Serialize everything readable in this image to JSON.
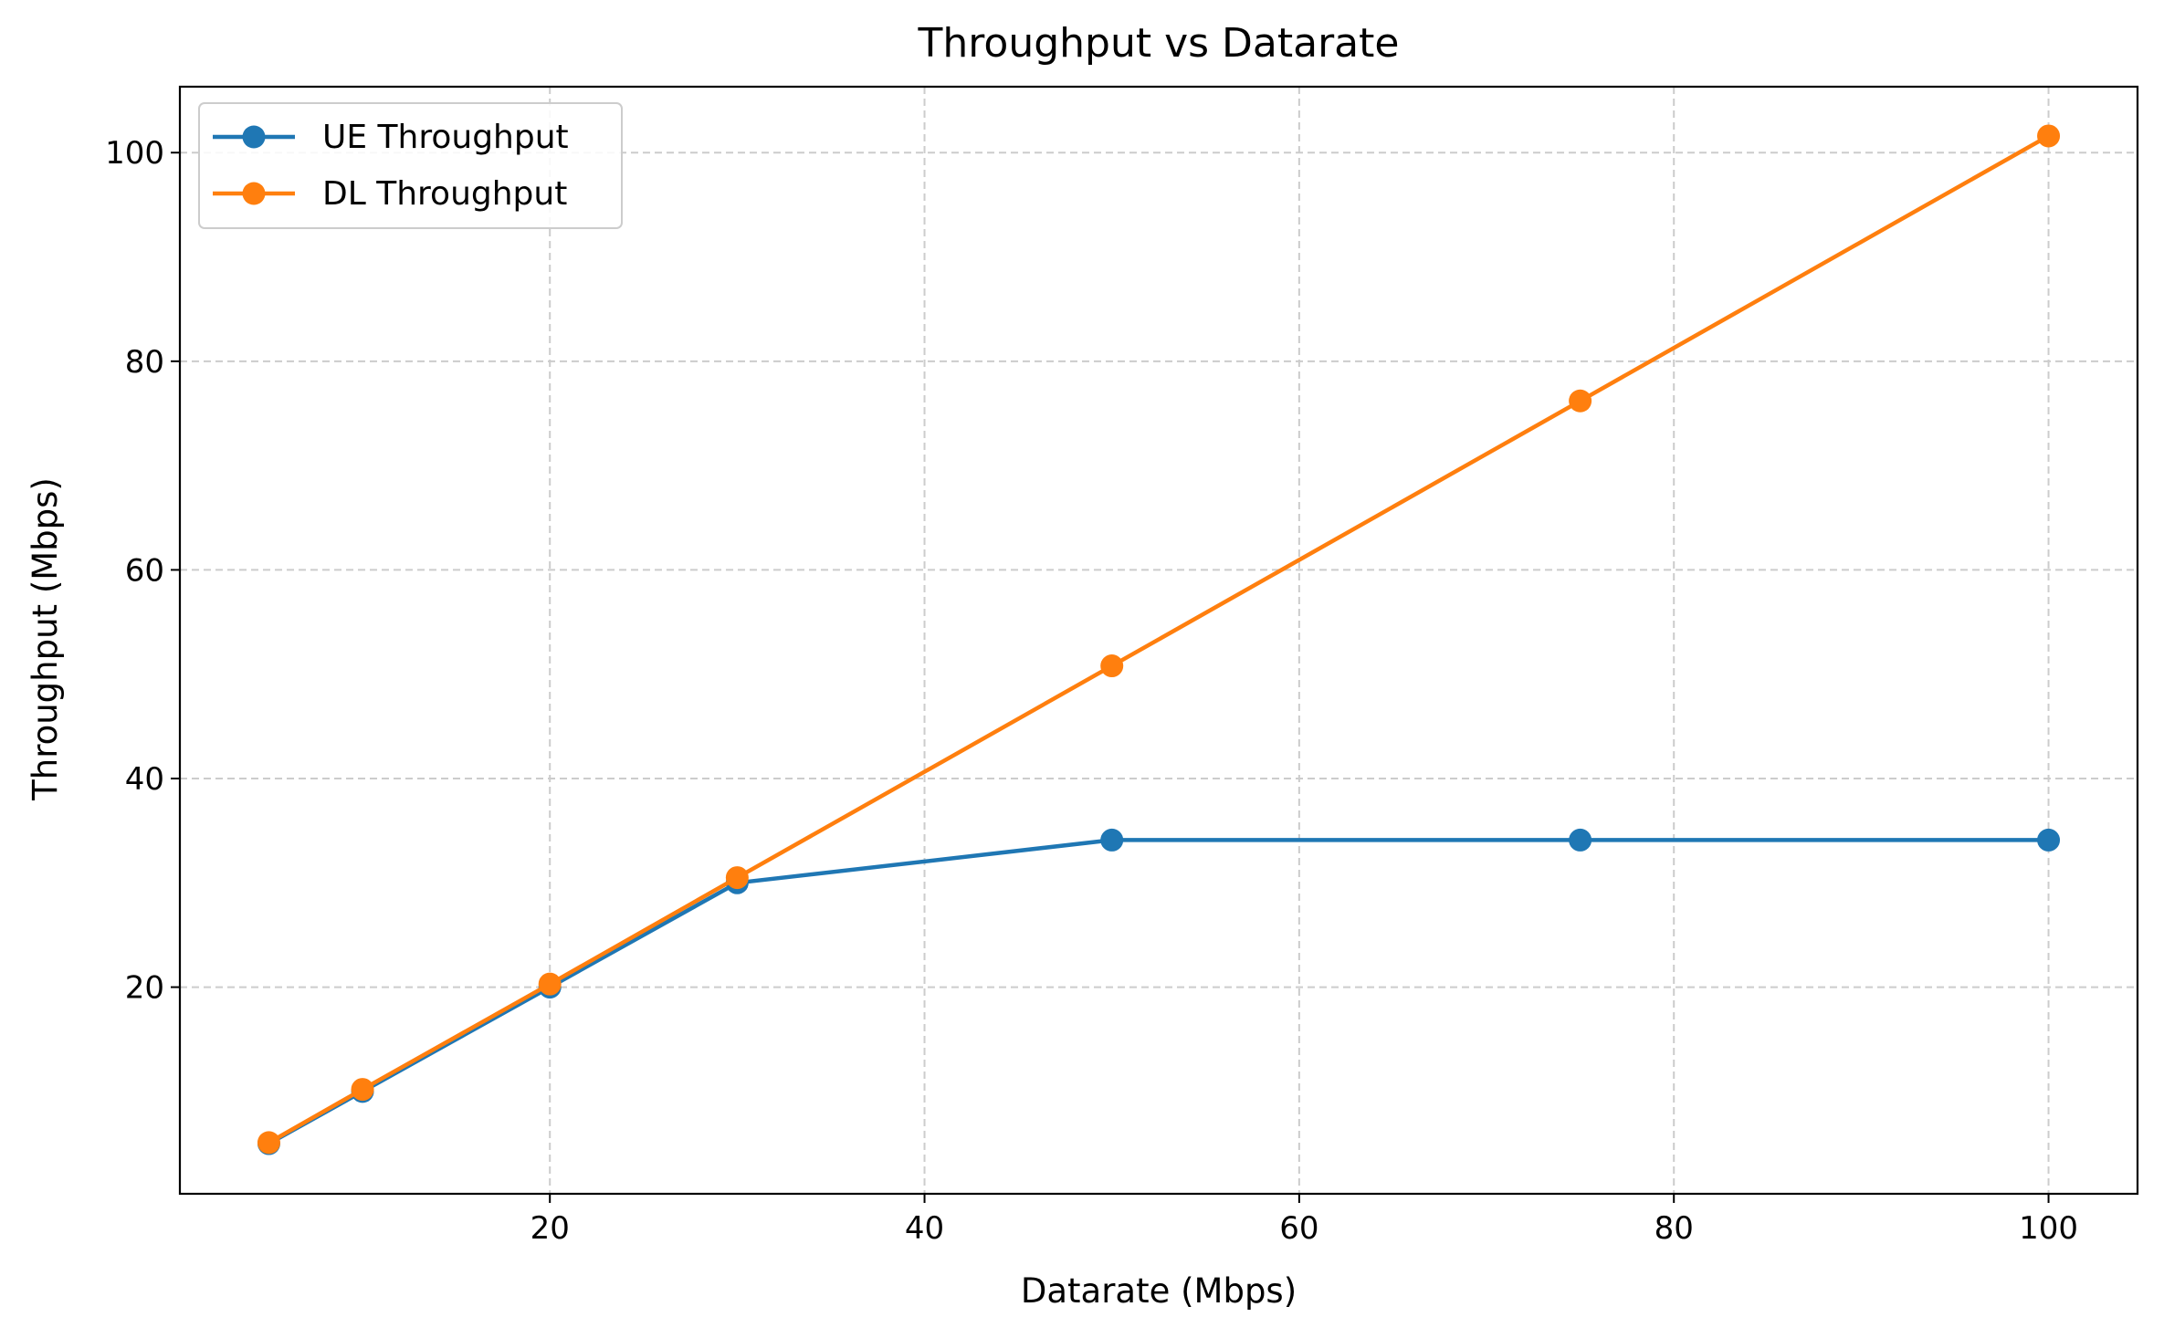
{
  "chart_data": {
    "type": "line",
    "title": "Throughput vs Datarate",
    "xlabel": "Datarate (Mbps)",
    "ylabel": "Throughput (Mbps)",
    "xlim": [
      0.25,
      104.75
    ],
    "ylim": [
      0.19,
      106.32
    ],
    "xticks": [
      20,
      40,
      60,
      80,
      100
    ],
    "yticks": [
      20,
      40,
      60,
      80,
      100
    ],
    "grid": true,
    "legend_position": "upper-left",
    "x": [
      5,
      10,
      20,
      30,
      50,
      75,
      100
    ],
    "series": [
      {
        "name": "UE Throughput",
        "color": "#1f77b4",
        "values": [
          5.0,
          10.0,
          20.0,
          30.0,
          34.1,
          34.1,
          34.1
        ]
      },
      {
        "name": "DL Throughput",
        "color": "#ff7f0e",
        "values": [
          5.1,
          10.2,
          20.3,
          30.5,
          50.8,
          76.2,
          101.6
        ]
      }
    ]
  }
}
